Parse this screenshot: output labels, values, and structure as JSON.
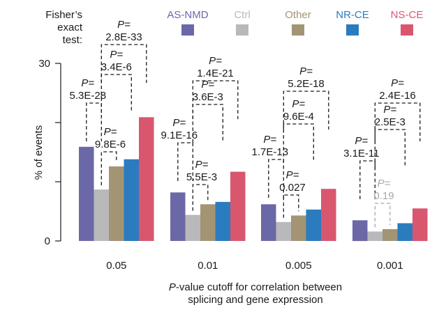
{
  "chart_data": {
    "type": "bar",
    "ylabel": "% of events",
    "xlabel_parts": [
      "P",
      "-value cutoff for correlation between",
      "splicing and gene expression"
    ],
    "ylim": [
      0,
      30
    ],
    "yticks": [
      0,
      30
    ],
    "categories": [
      "0.05",
      "0.01",
      "0.005",
      "0.001"
    ],
    "series": [
      {
        "name": "AS-NMD",
        "color": "#6b68a8",
        "values": [
          15.9,
          8.2,
          6.2,
          3.5
        ]
      },
      {
        "name": "Ctrl",
        "color": "#b9b9bb",
        "values": [
          8.7,
          4.4,
          3.2,
          1.6
        ]
      },
      {
        "name": "Other",
        "color": "#a39474",
        "values": [
          12.6,
          6.2,
          4.3,
          2.0
        ]
      },
      {
        "name": "NR-CE",
        "color": "#2a7cbf",
        "values": [
          13.8,
          6.6,
          5.3,
          3.0
        ]
      },
      {
        "name": "NS-CE",
        "color": "#d9566f",
        "values": [
          20.9,
          11.7,
          8.8,
          5.5
        ]
      }
    ],
    "legend_title": "Fisher's exact test:",
    "legend_title_lines": [
      "Fisher’s",
      "exact",
      "test:"
    ],
    "p_label": "P=",
    "comparisons": [
      {
        "category": "0.05",
        "items": [
          {
            "a": "AS-NMD",
            "b": "Ctrl",
            "p": "5.3E-28",
            "color": "#1a1a1a"
          },
          {
            "a": "Ctrl",
            "b": "Other",
            "p": "9.8E-6",
            "color": "#1a1a1a"
          },
          {
            "a": "Ctrl",
            "b": "NR-CE",
            "p": "3.4E-6",
            "color": "#1a1a1a"
          },
          {
            "a": "Ctrl",
            "b": "NS-CE",
            "p": "2.8E-33",
            "color": "#1a1a1a"
          }
        ]
      },
      {
        "category": "0.01",
        "items": [
          {
            "a": "AS-NMD",
            "b": "Ctrl",
            "p": "9.1E-16",
            "color": "#1a1a1a"
          },
          {
            "a": "Ctrl",
            "b": "Other",
            "p": "5.5E-3",
            "color": "#1a1a1a"
          },
          {
            "a": "Ctrl",
            "b": "NR-CE",
            "p": "3.6E-3",
            "color": "#1a1a1a"
          },
          {
            "a": "Ctrl",
            "b": "NS-CE",
            "p": "1.4E-21",
            "color": "#1a1a1a"
          }
        ]
      },
      {
        "category": "0.005",
        "items": [
          {
            "a": "AS-NMD",
            "b": "Ctrl",
            "p": "1.7E-13",
            "color": "#1a1a1a"
          },
          {
            "a": "Ctrl",
            "b": "Other",
            "p": "0.027",
            "color": "#1a1a1a"
          },
          {
            "a": "Ctrl",
            "b": "NR-CE",
            "p": "9.6E-4",
            "color": "#1a1a1a"
          },
          {
            "a": "Ctrl",
            "b": "NS-CE",
            "p": "5.2E-18",
            "color": "#1a1a1a"
          }
        ]
      },
      {
        "category": "0.001",
        "items": [
          {
            "a": "AS-NMD",
            "b": "Ctrl",
            "p": "3.1E-11",
            "color": "#1a1a1a"
          },
          {
            "a": "Ctrl",
            "b": "Other",
            "p": "0.19",
            "color": "#a8a8a8"
          },
          {
            "a": "Ctrl",
            "b": "NR-CE",
            "p": "2.5E-3",
            "color": "#1a1a1a"
          },
          {
            "a": "Ctrl",
            "b": "NS-CE",
            "p": "2.4E-16",
            "color": "#1a1a1a"
          }
        ]
      }
    ]
  }
}
